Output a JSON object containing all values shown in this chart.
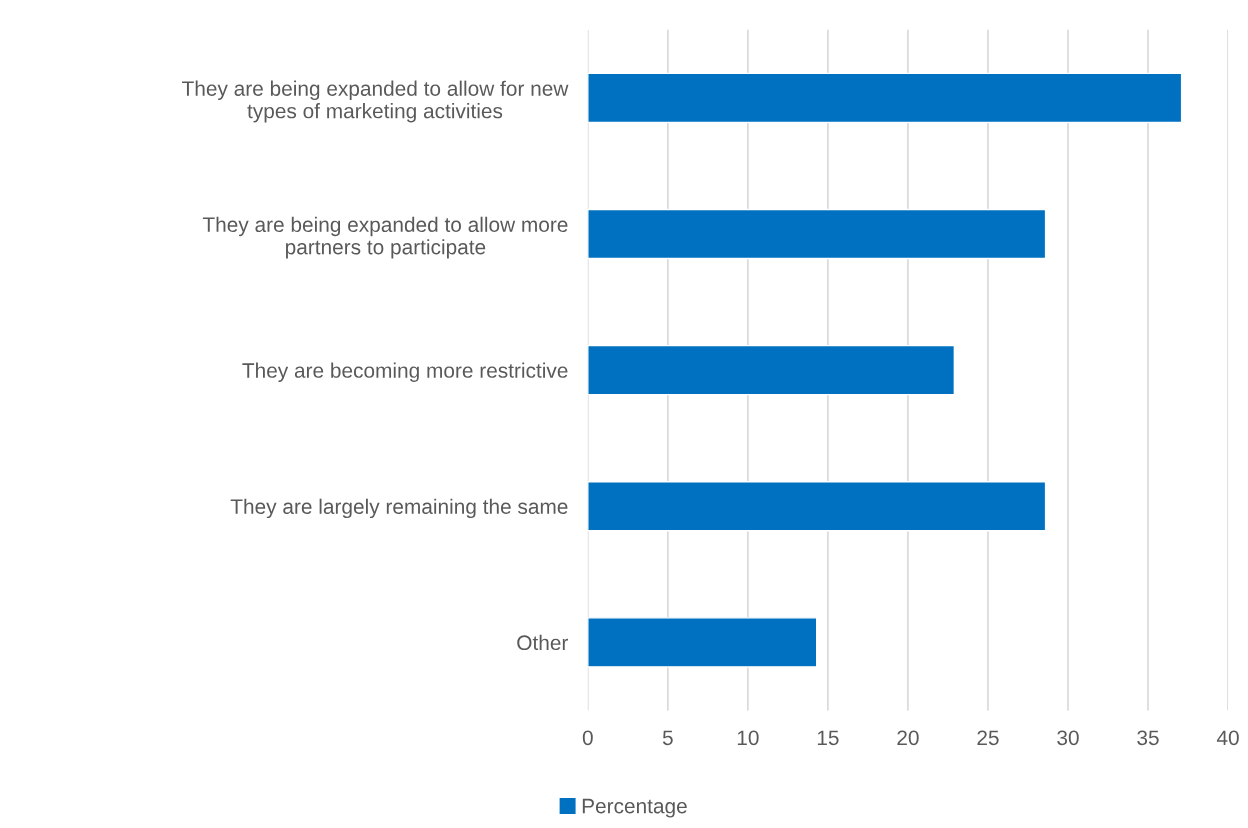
{
  "chart_data": {
    "type": "bar",
    "orientation": "horizontal",
    "categories": [
      "They are being expanded to allow for new\ntypes of marketing activities",
      "They are being expanded to allow more\npartners to participate",
      "They are becoming more restrictive",
      "They are largely remaining the same",
      "Other"
    ],
    "series": [
      {
        "name": "Percentage",
        "color": "#0070c0",
        "values": [
          37.1,
          28.6,
          22.9,
          28.6,
          14.3
        ]
      }
    ],
    "xlim": [
      0,
      40
    ],
    "xticks": [
      0,
      5,
      10,
      15,
      20,
      25,
      30,
      35,
      40
    ],
    "grid": "x",
    "legend": "bottom"
  }
}
